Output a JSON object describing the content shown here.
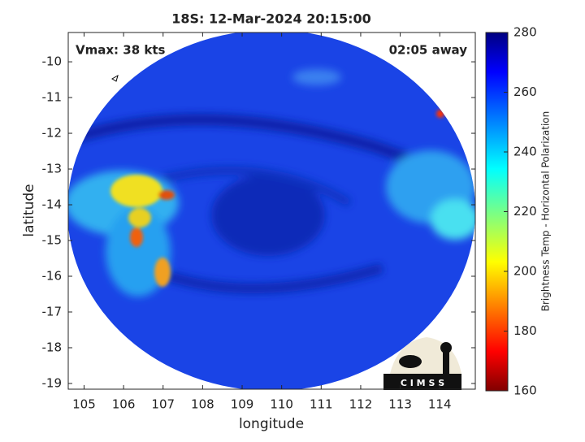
{
  "chart_data": {
    "type": "image",
    "title": "18S: 12-Mar-2024 20:15:00",
    "annotations": [
      "Vmax: 38 kts",
      "02:05 away"
    ],
    "xlabel": "longitude",
    "ylabel": "latitude",
    "xlim": [
      104.6,
      114.9
    ],
    "xticks": [
      105,
      106,
      107,
      108,
      109,
      110,
      111,
      112,
      113,
      114
    ],
    "ylim": [
      -19.16,
      -9.18
    ],
    "yticks": [
      -10,
      -11,
      -12,
      -13,
      -14,
      -15,
      -16,
      -17,
      -18,
      -19
    ],
    "colorbar": {
      "label": "Brightness Temp - Horizontal Polarization",
      "colormap": "jet",
      "clim": [
        160,
        280
      ],
      "ticks": [
        160,
        180,
        200,
        220,
        240,
        260,
        280
      ]
    },
    "logo": "C I M S S"
  }
}
